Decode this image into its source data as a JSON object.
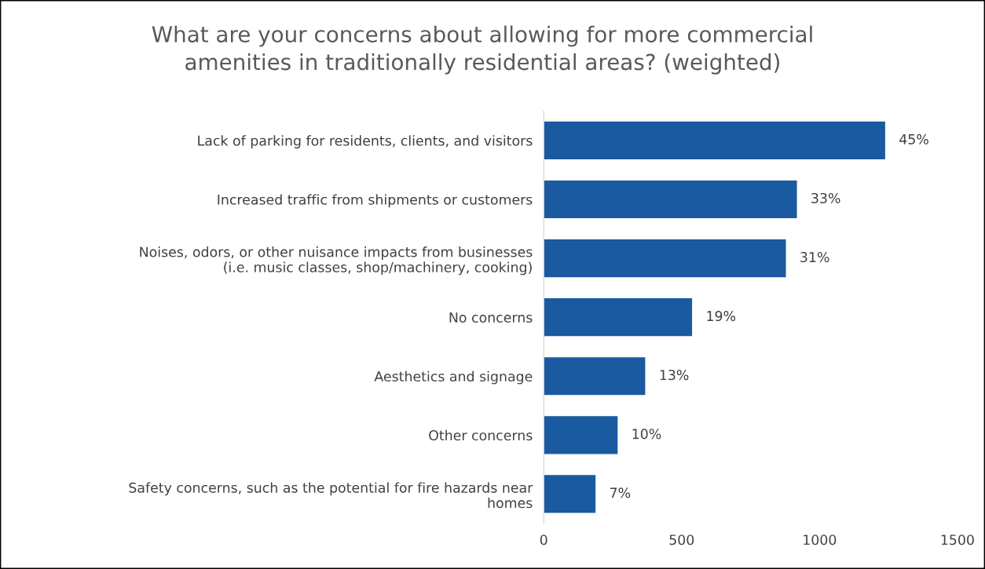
{
  "chart_data": {
    "type": "bar",
    "orientation": "horizontal",
    "title": "What are your concerns about allowing for more commercial\namenities in traditionally residential areas? (weighted)",
    "categories": [
      "Lack of parking for residents, clients, and visitors",
      "Increased traffic from shipments or customers",
      "Noises, odors, or other nuisance impacts from businesses\n(i.e. music classes, shop/machinery, cooking)",
      "No concerns",
      "Aesthetics and signage",
      "Other concerns",
      "Safety concerns, such as the potential for fire hazards near\nhomes"
    ],
    "values": [
      1240,
      920,
      880,
      540,
      370,
      270,
      190
    ],
    "annotations": [
      {
        "text": "45%",
        "x": 1240,
        "y": "Lack of parking for residents, clients, and visitors"
      },
      {
        "text": "33%",
        "x": 920,
        "y": "Increased traffic from shipments or customers"
      },
      {
        "text": "31%",
        "x": 880,
        "y": "Noises, odors, or other nuisance impacts from businesses\n(i.e. music classes, shop/machinery, cooking)"
      },
      {
        "text": "19%",
        "x": 540,
        "y": "No concerns"
      },
      {
        "text": "13%",
        "x": 370,
        "y": "Aesthetics and signage"
      },
      {
        "text": "10%",
        "x": 270,
        "y": "Other concerns"
      },
      {
        "text": "7%",
        "x": 190,
        "y": "Safety concerns, such as the potential for fire hazards near\nhomes"
      }
    ],
    "color": "#1a5aa0",
    "xlim": [
      0,
      1500
    ],
    "xticks": [
      0,
      500,
      1000,
      1500
    ],
    "grid": false,
    "legend": false
  }
}
